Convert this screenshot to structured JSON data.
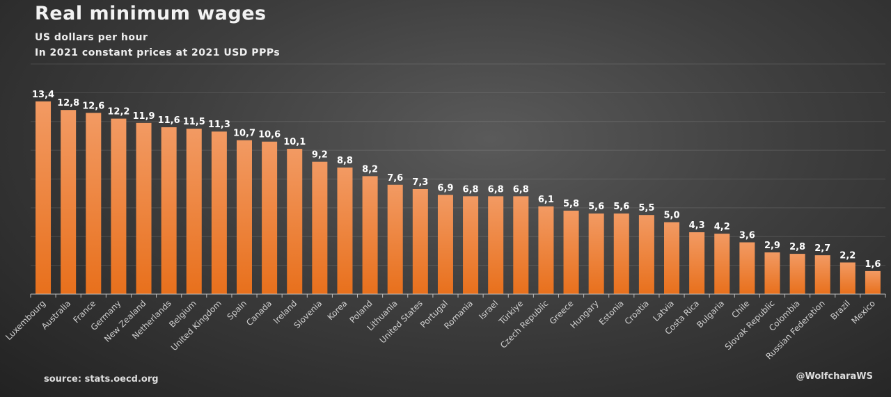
{
  "chart_data": {
    "type": "bar",
    "title": "Real minimum wages",
    "subtitle": [
      "US dollars per hour",
      "In 2021 constant prices at 2021 USD PPPs"
    ],
    "xlabel": "",
    "ylabel": "",
    "ylim": [
      0,
      16
    ],
    "grid": true,
    "categories": [
      "Luxembourg",
      "Australia",
      "France",
      "Germany",
      "New Zealand",
      "Netherlands",
      "Belgium",
      "United Kingdom",
      "Spain",
      "Canada",
      "Ireland",
      "Slovenia",
      "Korea",
      "Poland",
      "Lithuania",
      "United States",
      "Portugal",
      "Romania",
      "Israel",
      "Türkiye",
      "Czech Republic",
      "Greece",
      "Hungary",
      "Estonia",
      "Croatia",
      "Latvia",
      "Costa Rica",
      "Bulgaria",
      "Chile",
      "Slovak Republic",
      "Colombia",
      "Russian Federation",
      "Brazil",
      "Mexico"
    ],
    "values": [
      13.4,
      12.8,
      12.6,
      12.2,
      11.9,
      11.6,
      11.5,
      11.3,
      10.7,
      10.6,
      10.1,
      9.2,
      8.8,
      8.2,
      7.6,
      7.3,
      6.9,
      6.8,
      6.8,
      6.8,
      6.1,
      5.8,
      5.6,
      5.6,
      5.5,
      5.0,
      4.3,
      4.2,
      3.6,
      2.9,
      2.8,
      2.7,
      2.2,
      1.6
    ],
    "data_labels": [
      "13,4",
      "12,8",
      "12,6",
      "12,2",
      "11,9",
      "11,6",
      "11,5",
      "11,3",
      "10,7",
      "10,6",
      "10,1",
      "9,2",
      "8,8",
      "8,2",
      "7,6",
      "7,3",
      "6,9",
      "6,8",
      "6,8",
      "6,8",
      "6,1",
      "5,8",
      "5,6",
      "5,6",
      "5,5",
      "5,0",
      "4,3",
      "4,2",
      "3,6",
      "2,9",
      "2,8",
      "2,7",
      "2,2",
      "1,6"
    ],
    "colors": {
      "bar_top": "#f29a63",
      "bar_bottom": "#e8701c",
      "label": "#ffffff",
      "axis": "#bfbfbf"
    }
  },
  "footer": {
    "source": "source: stats.oecd.org",
    "handle": "@WolfcharaWS"
  }
}
